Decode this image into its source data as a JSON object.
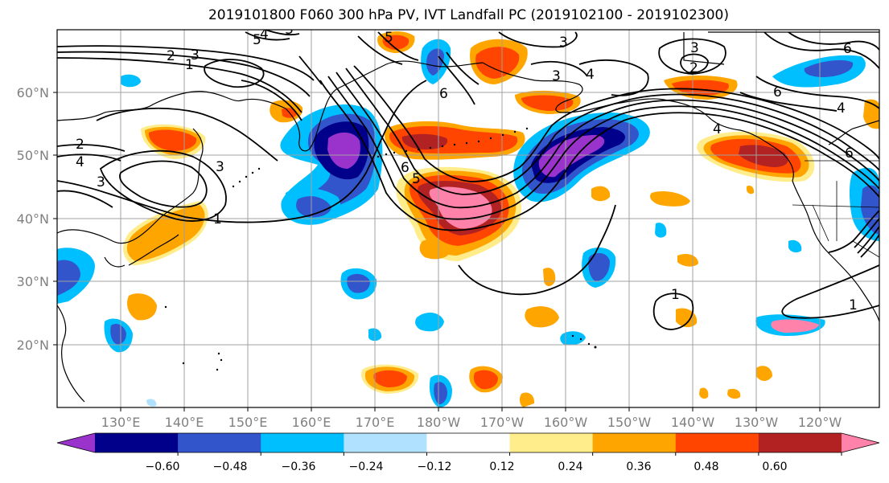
{
  "title": "2019101800 F060 300 hPa PV, IVT Landfall PC (2019102100 - 2019102300)",
  "map": {
    "lon_ticks": [
      "130°E",
      "140°E",
      "150°E",
      "160°E",
      "170°E",
      "180°W",
      "170°W",
      "160°W",
      "150°W",
      "140°W",
      "130°W",
      "120°W"
    ],
    "lat_ticks": [
      "60°N",
      "50°N",
      "40°N",
      "30°N",
      "20°N"
    ],
    "contour_labels": [
      {
        "text": "5"
      },
      {
        "text": "4"
      },
      {
        "text": "3"
      },
      {
        "text": "2"
      },
      {
        "text": "1"
      },
      {
        "text": "3"
      },
      {
        "text": "5"
      },
      {
        "text": "3"
      },
      {
        "text": "4"
      },
      {
        "text": "6"
      },
      {
        "text": "3"
      },
      {
        "text": "2"
      },
      {
        "text": "6"
      },
      {
        "text": "4"
      },
      {
        "text": "6"
      },
      {
        "text": "3"
      },
      {
        "text": "2"
      },
      {
        "text": "4"
      },
      {
        "text": "3"
      },
      {
        "text": "3"
      },
      {
        "text": "1"
      },
      {
        "text": "6"
      },
      {
        "text": "5"
      },
      {
        "text": "4"
      },
      {
        "text": "1"
      },
      {
        "text": "1"
      },
      {
        "text": "6"
      }
    ]
  },
  "colorbar": {
    "colors": [
      "#9933cc",
      "#00008b",
      "#3355cc",
      "#00bfff",
      "#b0e2ff",
      "#ffffff",
      "#ffec8b",
      "#ffa500",
      "#ff4500",
      "#b22222",
      "#ff82ab"
    ],
    "labels": [
      "−0.60",
      "−0.48",
      "−0.36",
      "−0.24",
      "−0.12",
      "0.12",
      "0.24",
      "0.36",
      "0.48",
      "0.60"
    ]
  }
}
